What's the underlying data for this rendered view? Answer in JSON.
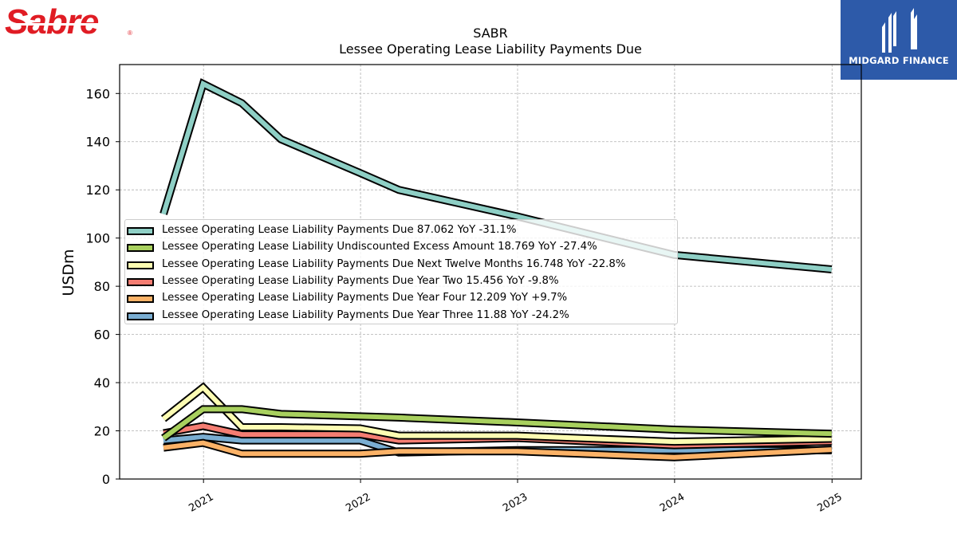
{
  "header": {
    "brand": "Sabre",
    "company": "MIDGARD FINANCE",
    "colors": {
      "sabre_red": "#e01c24",
      "midgard_blue": "#2d5aa9"
    }
  },
  "chart_data": {
    "type": "line",
    "title": "SABR",
    "subtitle": "Lessee Operating Lease Liability Payments Due",
    "ylabel": "USDm",
    "xlabel": "",
    "ylim": [
      0,
      172
    ],
    "yticks": [
      0,
      20,
      40,
      60,
      80,
      100,
      120,
      140,
      160
    ],
    "xticks": [
      "2021",
      "2022",
      "2023",
      "2024",
      "2025"
    ],
    "grid": true,
    "legend_position": "center-left",
    "x": [
      "2020-09-30",
      "2020-12-31",
      "2021-03-31",
      "2021-06-30",
      "2021-12-31",
      "2022-03-31",
      "2022-12-31",
      "2023-12-31",
      "2024-12-31"
    ],
    "series": [
      {
        "name": "Lessee Operating Lease Liability Payments Due",
        "legend": "Lessee Operating Lease Liability Payments Due  87.062 YoY -31.1%",
        "color": "#8ecfc5",
        "values": [
          110,
          164,
          156,
          141,
          127,
          120,
          109,
          93,
          87
        ]
      },
      {
        "name": "Lessee Operating Lease Liability Undiscounted Excess Amount",
        "legend": "Lessee Operating Lease Liability Undiscounted Excess Amount  18.769 YoY -27.4%",
        "color": "#a8d05e",
        "values": [
          17,
          29,
          29,
          27,
          26,
          25.5,
          23.5,
          20.5,
          18.8
        ]
      },
      {
        "name": "Lessee Operating Lease Liability Payments Due Next Twelve Months",
        "legend": "Lessee Operating Lease Liability Payments Due Next Twelve Months  16.748 YoY -22.8%",
        "color": "#fdfdb3",
        "values": [
          25,
          38,
          21.5,
          21.5,
          21,
          18,
          18,
          15.5,
          16.7
        ]
      },
      {
        "name": "Lessee Operating Lease Liability Payments Due Year Two",
        "legend": "Lessee Operating Lease Liability Payments Due Year Two  15.456 YoY -9.8%",
        "color": "#f47d72",
        "values": [
          19,
          22,
          18.5,
          18.5,
          18.5,
          16,
          17,
          14,
          15.5
        ]
      },
      {
        "name": "Lessee Operating Lease Liability Payments Due Year Four",
        "legend": "Lessee Operating Lease Liability Payments Due Year Four  12.209 YoY +9.7%",
        "color": "#fbb267",
        "values": [
          13,
          15,
          10.5,
          10.5,
          10.5,
          11.5,
          11.5,
          9,
          12.2
        ]
      },
      {
        "name": "Lessee Operating Lease Liability Payments Due Year Three",
        "legend": "Lessee Operating Lease Liability Payments Due Year Three  11.88 YoY -24.2%",
        "color": "#7aaed2",
        "values": [
          16,
          17.5,
          16,
          16,
          16,
          11,
          12,
          12,
          11.9
        ]
      }
    ]
  }
}
